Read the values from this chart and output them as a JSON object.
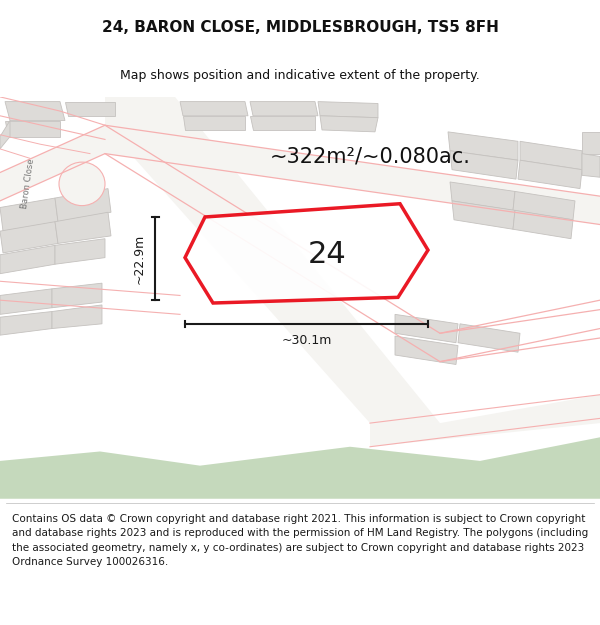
{
  "title": "24, BARON CLOSE, MIDDLESBROUGH, TS5 8FH",
  "subtitle": "Map shows position and indicative extent of the property.",
  "area_text": "~322m²/~0.080ac.",
  "width_label": "~30.1m",
  "height_label": "~22.9m",
  "plot_number": "24",
  "footer_text": "Contains OS data © Crown copyright and database right 2021. This information is subject to Crown copyright and database rights 2023 and is reproduced with the permission of HM Land Registry. The polygons (including the associated geometry, namely x, y co-ordinates) are subject to Crown copyright and database rights 2023 Ordnance Survey 100026316.",
  "map_bg": "#edecea",
  "road_color": "#f5f4f1",
  "building_color": "#dddbd8",
  "building_outline": "#c5c2bf",
  "plot_fill": "#ffffff",
  "plot_outline_color": "#e8000d",
  "dim_color": "#1a1a1a",
  "road_line_color": "#f5b0b0",
  "green_color": "#c5d9bc",
  "title_fontsize": 11,
  "subtitle_fontsize": 9,
  "footer_fontsize": 7.5,
  "plot_label_fontsize": 22,
  "area_fontsize": 15,
  "dim_fontsize": 9,
  "baron_label_fontsize": 6
}
